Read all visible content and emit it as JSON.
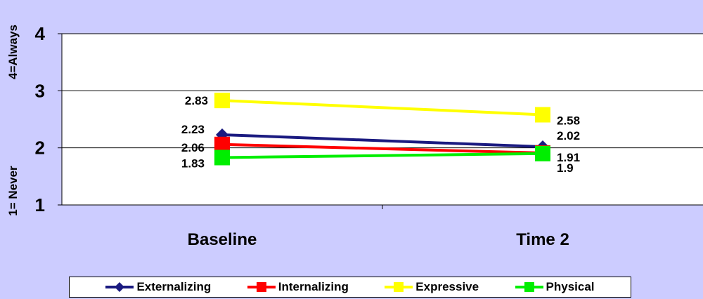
{
  "chart_data": {
    "type": "line",
    "title": "",
    "categories": [
      "Baseline",
      "Time 2"
    ],
    "ylim": [
      1,
      4
    ],
    "yticks": [
      "1",
      "2",
      "3",
      "4"
    ],
    "ylabel_top": "4=Always",
    "ylabel_bottom": "1= Never",
    "grid": true,
    "legend_position": "bottom",
    "series": [
      {
        "name": "Externalizing",
        "values": [
          2.23,
          2.02
        ],
        "labels": [
          "2.23",
          "2.02"
        ],
        "color": "#1a1a80",
        "marker": "diamond"
      },
      {
        "name": "Internalizing",
        "values": [
          2.06,
          1.91
        ],
        "labels": [
          "2.06",
          "1.91"
        ],
        "color": "#ff0000",
        "marker": "square"
      },
      {
        "name": "Expressive",
        "values": [
          2.83,
          2.58
        ],
        "labels": [
          "2.83",
          "2.58"
        ],
        "color": "#ffff00",
        "marker": "square"
      },
      {
        "name": "Physical",
        "values": [
          1.83,
          1.9
        ],
        "labels": [
          "1.83",
          "1.9"
        ],
        "color": "#00ee00",
        "marker": "square"
      }
    ]
  }
}
